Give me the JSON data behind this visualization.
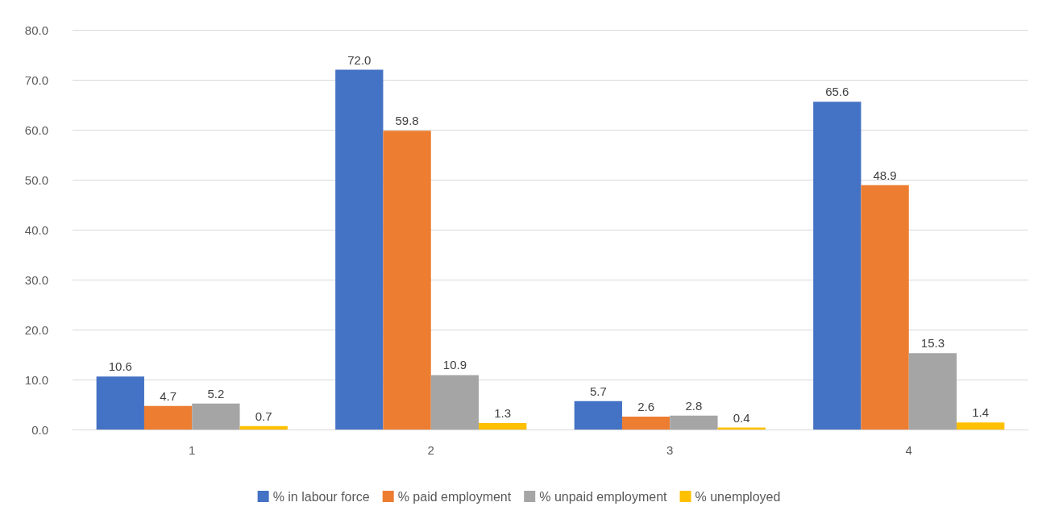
{
  "chart_data": {
    "type": "bar",
    "categories": [
      "1",
      "2",
      "3",
      "4"
    ],
    "series": [
      {
        "name": "% in labour force",
        "color": "#4472c4",
        "values": [
          10.6,
          72.0,
          5.7,
          65.6
        ],
        "value_labels": [
          "10.6",
          "72.0",
          "5.7",
          "65.6"
        ]
      },
      {
        "name": "% paid employment",
        "color": "#ed7d31",
        "values": [
          4.7,
          59.8,
          2.6,
          48.9
        ],
        "value_labels": [
          "4.7",
          "59.8",
          "2.6",
          "48.9"
        ]
      },
      {
        "name": "% unpaid employment",
        "color": "#a5a5a5",
        "values": [
          5.2,
          10.9,
          2.8,
          15.3
        ],
        "value_labels": [
          "5.2",
          "10.9",
          "2.8",
          "15.3"
        ]
      },
      {
        "name": "% unemployed",
        "color": "#ffc000",
        "values": [
          0.7,
          1.3,
          0.4,
          1.4
        ],
        "value_labels": [
          "0.7",
          "1.3",
          "0.4",
          "1.4"
        ]
      }
    ],
    "ylim": [
      0,
      80
    ],
    "yticks": [
      {
        "value": 0,
        "label": "0.0"
      },
      {
        "value": 10,
        "label": "10.0"
      },
      {
        "value": 20,
        "label": "20.0"
      },
      {
        "value": 30,
        "label": "30.0"
      },
      {
        "value": 40,
        "label": "40.0"
      },
      {
        "value": 50,
        "label": "50.0"
      },
      {
        "value": 60,
        "label": "60.0"
      },
      {
        "value": 70,
        "label": "70.0"
      },
      {
        "value": 80,
        "label": "80.0"
      }
    ],
    "grid": "y",
    "legend": "bottom"
  }
}
